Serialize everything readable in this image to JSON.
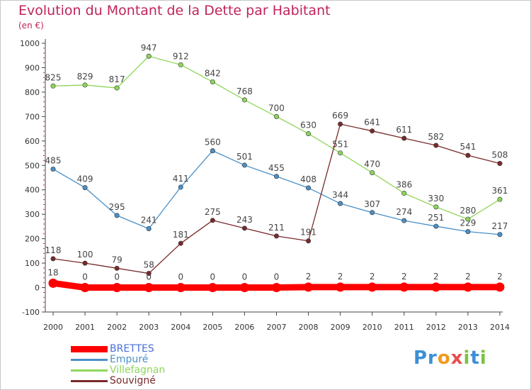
{
  "chart_data": {
    "type": "line",
    "title": "Evolution du Montant de la Dette par Habitant",
    "subtitle": "(en €)",
    "x": [
      "2000",
      "2001",
      "2002",
      "2003",
      "2004",
      "2005",
      "2006",
      "2007",
      "2008",
      "2009",
      "2010",
      "2011",
      "2012",
      "2013",
      "2014"
    ],
    "yticks": [
      "-100",
      "0",
      "100",
      "200",
      "300",
      "400",
      "500",
      "600",
      "700",
      "800",
      "900",
      "1000"
    ],
    "ylim": [
      -100,
      1000
    ],
    "grid": false,
    "legend_position": "bottom-left",
    "series": [
      {
        "name": "BRETTES",
        "color": "#ff0000",
        "thick": true,
        "values": [
          18,
          0,
          0,
          0,
          0,
          0,
          0,
          0,
          2,
          2,
          2,
          2,
          2,
          2,
          2
        ]
      },
      {
        "name": "Empuré",
        "color": "#4a90c8",
        "thick": false,
        "values": [
          485,
          409,
          295,
          241,
          411,
          560,
          501,
          455,
          408,
          344,
          307,
          274,
          251,
          229,
          217
        ]
      },
      {
        "name": "Villefagnan",
        "color": "#8ed65a",
        "thick": false,
        "values": [
          825,
          829,
          817,
          947,
          912,
          842,
          768,
          700,
          630,
          551,
          470,
          386,
          330,
          280,
          361
        ]
      },
      {
        "name": "Souvigné",
        "color": "#7a2a2a",
        "thick": false,
        "values": [
          118,
          100,
          79,
          58,
          181,
          275,
          243,
          211,
          191,
          669,
          641,
          611,
          582,
          541,
          508
        ]
      }
    ]
  },
  "logo": {
    "p1": "Pr",
    "o": "o",
    "x": "x",
    "i1": "i",
    "t": "t",
    "i2": "i"
  }
}
